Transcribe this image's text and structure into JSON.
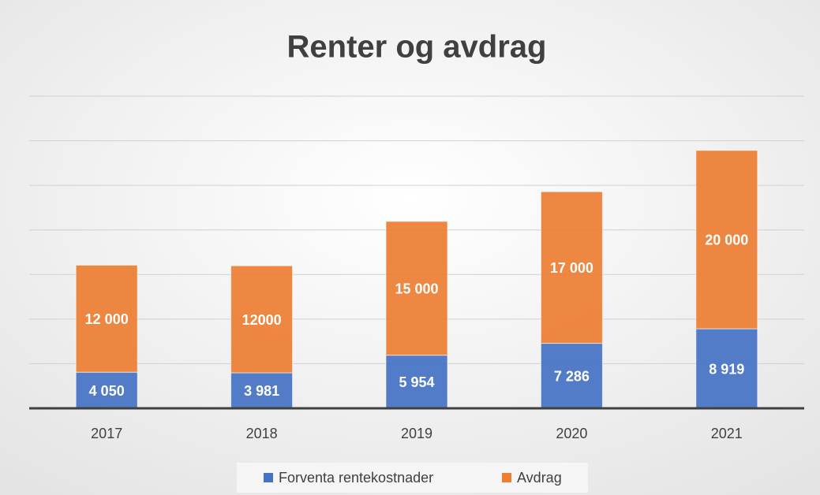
{
  "chart_data": {
    "type": "stacked_bar",
    "title": "Renter og avdrag",
    "categories": [
      "2017",
      "2018",
      "2019",
      "2020",
      "2021"
    ],
    "series": [
      {
        "name": "Forventa rentekostnader",
        "color": "#4472c4",
        "values": [
          4050,
          3981,
          5954,
          7286,
          8919
        ],
        "value_labels": [
          "4 050",
          "3 981",
          "5 954",
          "7 286",
          "8 919"
        ]
      },
      {
        "name": "Avdrag",
        "color": "#ed7d31",
        "values": [
          12000,
          12000,
          15000,
          17000,
          20000
        ],
        "value_labels": [
          "12 000",
          "12000",
          "15 000",
          "17 000",
          "20 000"
        ]
      }
    ],
    "ylim": [
      0,
      35000
    ],
    "yticks": [
      0,
      5000,
      10000,
      15000,
      20000,
      25000,
      30000,
      35000
    ],
    "grid": true,
    "legend": "bottom"
  }
}
